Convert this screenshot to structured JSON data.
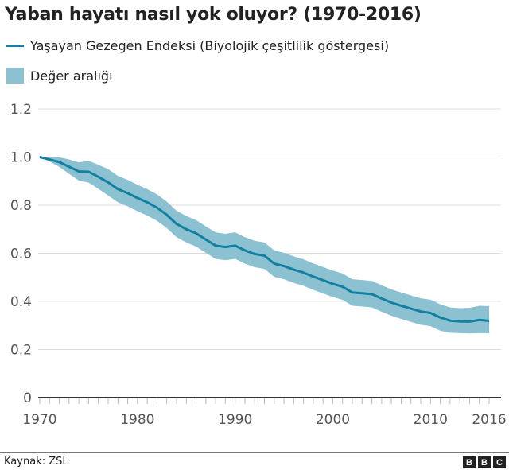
{
  "chart_data": {
    "type": "line",
    "title": "Yaban hayatı nasıl yok oluyor? (1970-2016)",
    "xlabel": "",
    "ylabel": "",
    "xlim": [
      1970,
      2016
    ],
    "ylim": [
      0,
      1.2
    ],
    "grid": true,
    "legend_placement": "top-left",
    "y_ticks": [
      "0",
      "0.2",
      "0.4",
      "0.6",
      "0.8",
      "1.0",
      "1.2"
    ],
    "y_tick_values": [
      0,
      0.2,
      0.4,
      0.6,
      0.8,
      1.0,
      1.2
    ],
    "x_ticks": [
      "1970",
      "1980",
      "1990",
      "2000",
      "2010",
      "2016"
    ],
    "x_tick_values": [
      1970,
      1980,
      1990,
      2000,
      2010,
      2016
    ],
    "x": [
      1970,
      1971,
      1972,
      1973,
      1974,
      1975,
      1976,
      1977,
      1978,
      1979,
      1980,
      1981,
      1982,
      1983,
      1984,
      1985,
      1986,
      1987,
      1988,
      1989,
      1990,
      1991,
      1992,
      1993,
      1994,
      1995,
      1996,
      1997,
      1998,
      1999,
      2000,
      2001,
      2002,
      2003,
      2004,
      2005,
      2006,
      2007,
      2008,
      2009,
      2010,
      2011,
      2012,
      2013,
      2014,
      2015,
      2016
    ],
    "series": [
      {
        "name": "Yaşayan Gezegen Endeksi (Biyolojik çeşitlilik göstergesi)",
        "color": "#1380a1",
        "values": [
          1.0,
          0.99,
          0.979,
          0.96,
          0.94,
          0.939,
          0.918,
          0.895,
          0.867,
          0.85,
          0.83,
          0.812,
          0.79,
          0.76,
          0.722,
          0.7,
          0.683,
          0.657,
          0.632,
          0.626,
          0.632,
          0.612,
          0.597,
          0.59,
          0.557,
          0.547,
          0.532,
          0.52,
          0.503,
          0.488,
          0.473,
          0.461,
          0.437,
          0.434,
          0.43,
          0.412,
          0.395,
          0.382,
          0.37,
          0.358,
          0.352,
          0.333,
          0.32,
          0.317,
          0.316,
          0.323,
          0.319
        ]
      },
      {
        "name": "Değer aralığı",
        "color": "#8cc1d2",
        "lower": [
          1.0,
          0.982,
          0.959,
          0.93,
          0.902,
          0.894,
          0.868,
          0.84,
          0.812,
          0.795,
          0.775,
          0.757,
          0.735,
          0.705,
          0.667,
          0.645,
          0.628,
          0.602,
          0.577,
          0.571,
          0.577,
          0.557,
          0.542,
          0.535,
          0.502,
          0.492,
          0.477,
          0.465,
          0.448,
          0.433,
          0.418,
          0.406,
          0.382,
          0.379,
          0.375,
          0.357,
          0.34,
          0.327,
          0.315,
          0.303,
          0.297,
          0.278,
          0.27,
          0.268,
          0.267,
          0.268,
          0.268
        ],
        "upper": [
          1.0,
          0.998,
          0.999,
          0.99,
          0.978,
          0.984,
          0.968,
          0.95,
          0.922,
          0.905,
          0.885,
          0.867,
          0.845,
          0.815,
          0.777,
          0.755,
          0.738,
          0.712,
          0.687,
          0.681,
          0.687,
          0.667,
          0.652,
          0.645,
          0.612,
          0.602,
          0.587,
          0.575,
          0.558,
          0.543,
          0.528,
          0.516,
          0.492,
          0.489,
          0.485,
          0.467,
          0.45,
          0.437,
          0.425,
          0.413,
          0.407,
          0.388,
          0.375,
          0.372,
          0.373,
          0.382,
          0.38
        ]
      }
    ]
  },
  "footer": {
    "source": "Kaynak: ZSL",
    "logo_letters": [
      "B",
      "B",
      "C"
    ]
  }
}
